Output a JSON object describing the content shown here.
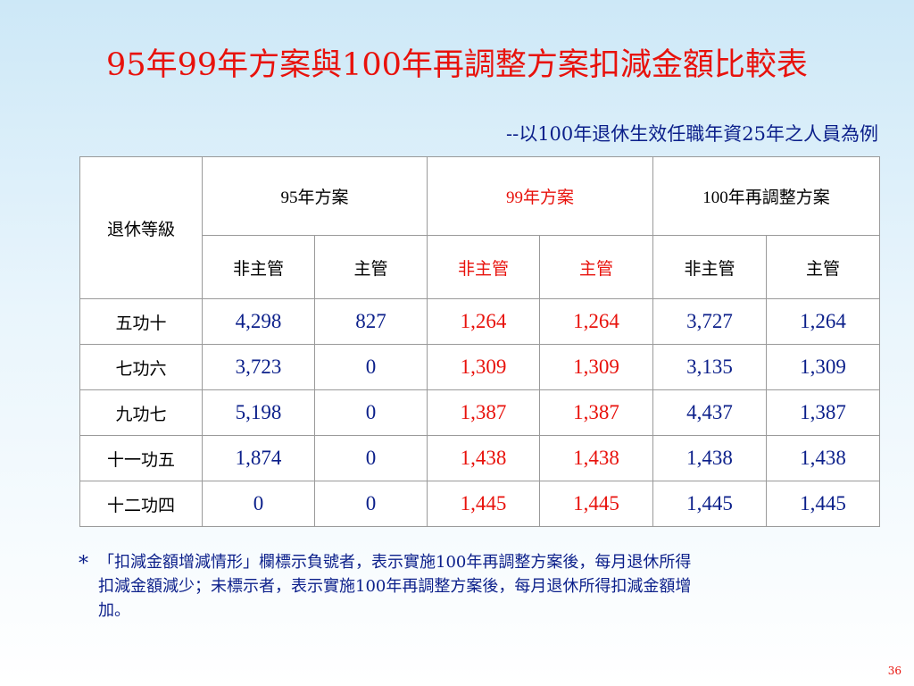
{
  "title": "95年99年方案與100年再調整方案扣減金額比較表",
  "subtitle": "--以100年退休生效任職年資25年之人員為例",
  "table": {
    "row_header": "退休等級",
    "groups": [
      "95年方案",
      "99年方案",
      "100年再調整方案"
    ],
    "subheaders": [
      "非主管",
      "主管",
      "非主管",
      "主管",
      "非主管",
      "主管"
    ],
    "rows": [
      {
        "grade": "五功十",
        "cells": [
          "4,298",
          "827",
          "1,264",
          "1,264",
          "3,727",
          "1,264"
        ]
      },
      {
        "grade": "七功六",
        "cells": [
          "3,723",
          "0",
          "1,309",
          "1,309",
          "3,135",
          "1,309"
        ]
      },
      {
        "grade": "九功七",
        "cells": [
          "5,198",
          "0",
          "1,387",
          "1,387",
          "4,437",
          "1,387"
        ]
      },
      {
        "grade": "十一功五",
        "cells": [
          "1,874",
          "0",
          "1,438",
          "1,438",
          "1,438",
          "1,438"
        ]
      },
      {
        "grade": "十二功四",
        "cells": [
          "0",
          "0",
          "1,445",
          "1,445",
          "1,445",
          "1,445"
        ]
      }
    ]
  },
  "note": {
    "marker": "*",
    "lines": [
      "「扣減金額增減情形」欄標示負號者，表示實施100年再調整方案後，每月退休所得",
      "扣減金額減少；未標示者，表示實施100年再調整方案後，每月退休所得扣減金額增",
      "加。"
    ]
  },
  "page_number": "36",
  "colors": {
    "title": "#e8120c",
    "text_blue": "#0b1f8a",
    "highlight_red": "#e8120c"
  }
}
